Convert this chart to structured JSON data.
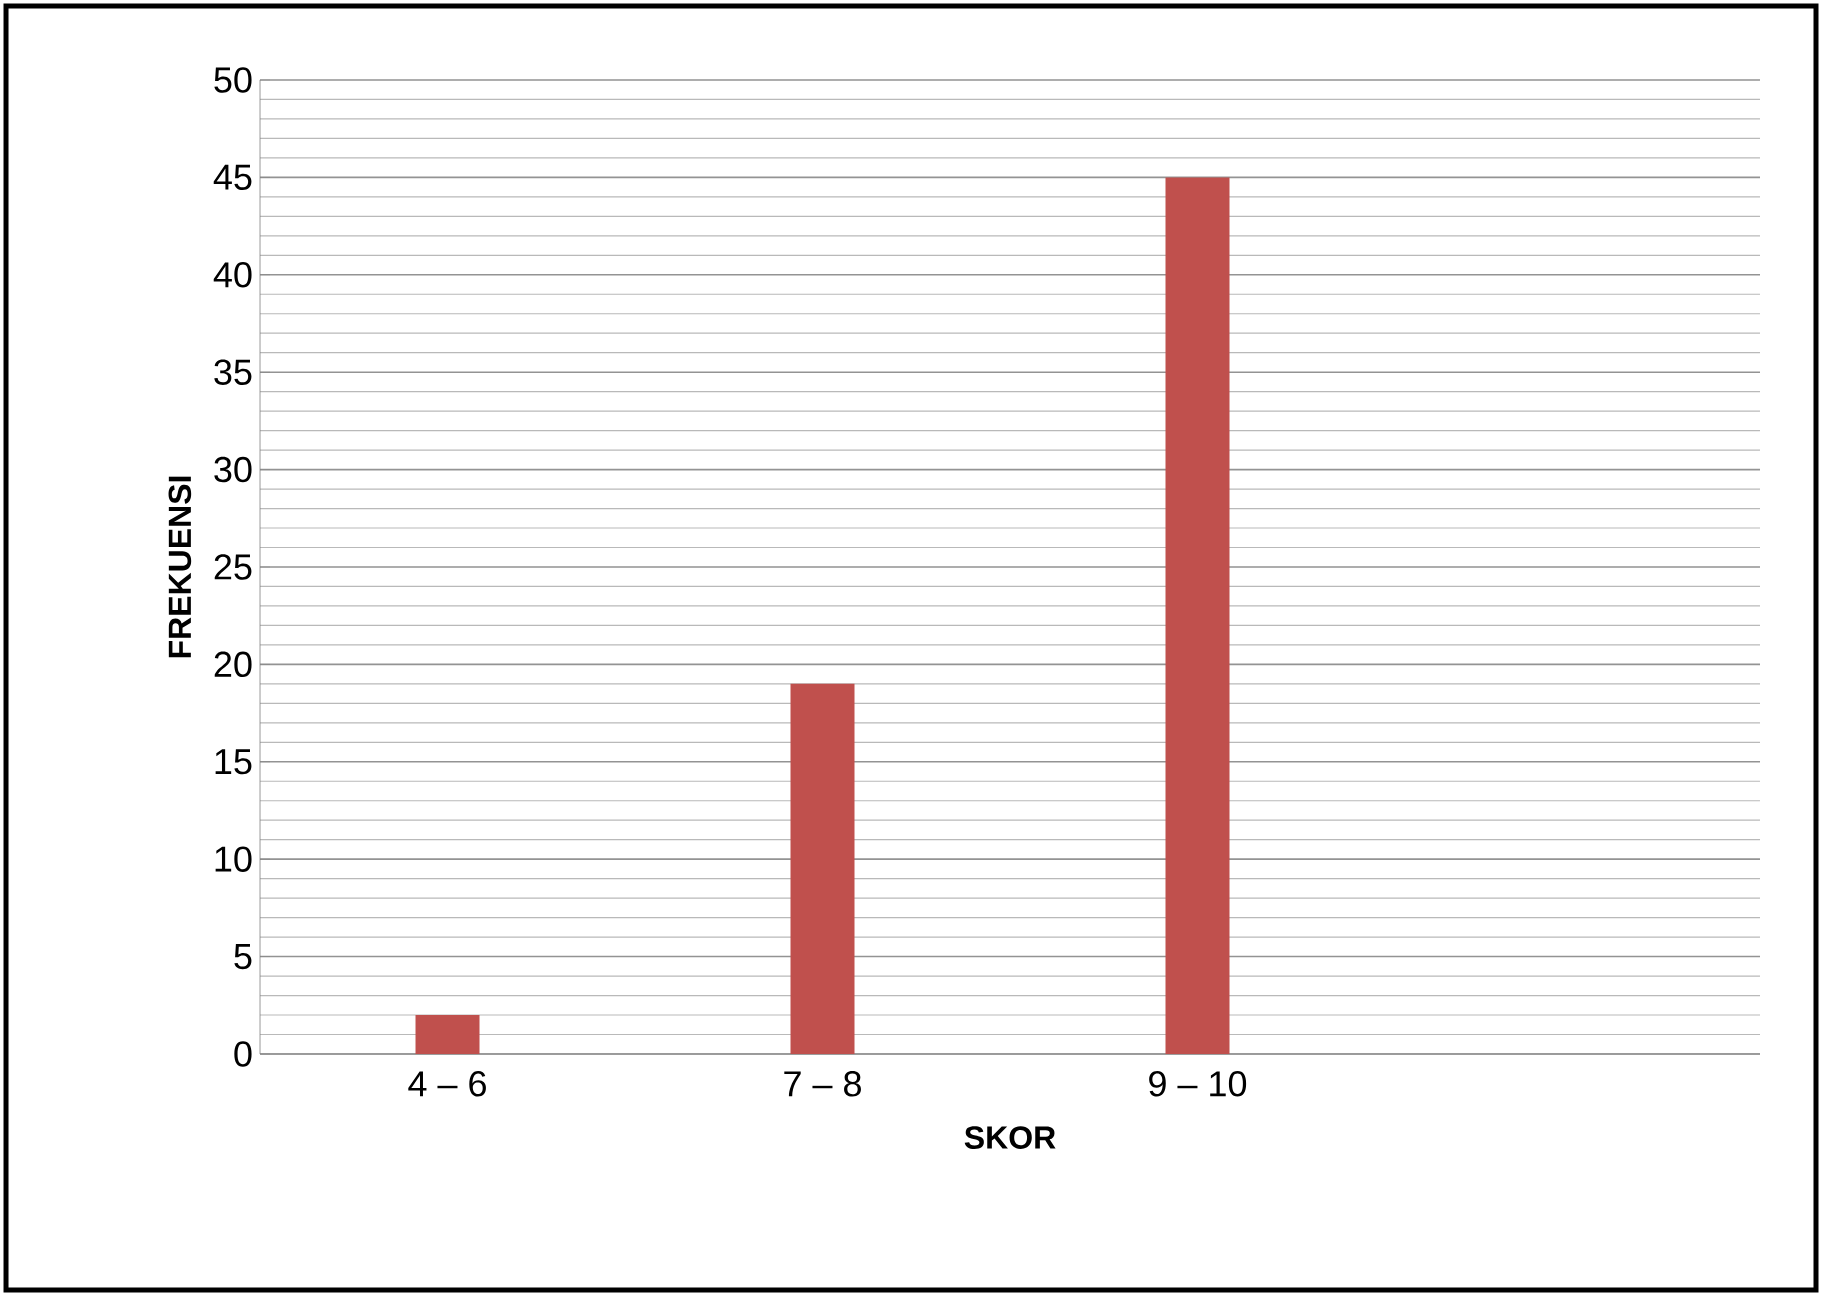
{
  "chart_data": {
    "type": "bar",
    "xlabel": "SKOR",
    "ylabel": "FREKUENSI",
    "categories": [
      "4 – 6",
      "7 – 8",
      "9 – 10",
      null
    ],
    "values": [
      2,
      19,
      45,
      null
    ],
    "color": "#c0504d",
    "ylim": [
      0,
      50
    ],
    "yticks": [
      0,
      5,
      10,
      15,
      20,
      25,
      30,
      35,
      40,
      45,
      50
    ],
    "grid": "y"
  }
}
